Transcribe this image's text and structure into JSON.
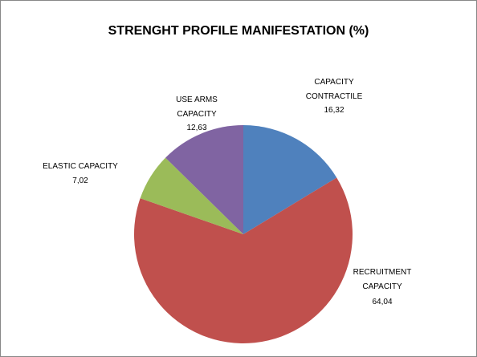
{
  "chart_data": {
    "type": "pie",
    "title": "STRENGHT PROFILE MANIFESTATION (%)",
    "categories": [
      "CAPACITY CONTRACTILE",
      "RECRUITMENT CAPACITY",
      "ELASTIC CAPACITY",
      "USE ARMS CAPACITY"
    ],
    "values": [
      16.32,
      64.04,
      7.02,
      12.63
    ],
    "value_labels": [
      "16,32",
      "64,04",
      "7,02",
      "12,63"
    ],
    "colors": [
      "#4f81bd",
      "#c0504d",
      "#9bbb59",
      "#8064a2"
    ]
  }
}
